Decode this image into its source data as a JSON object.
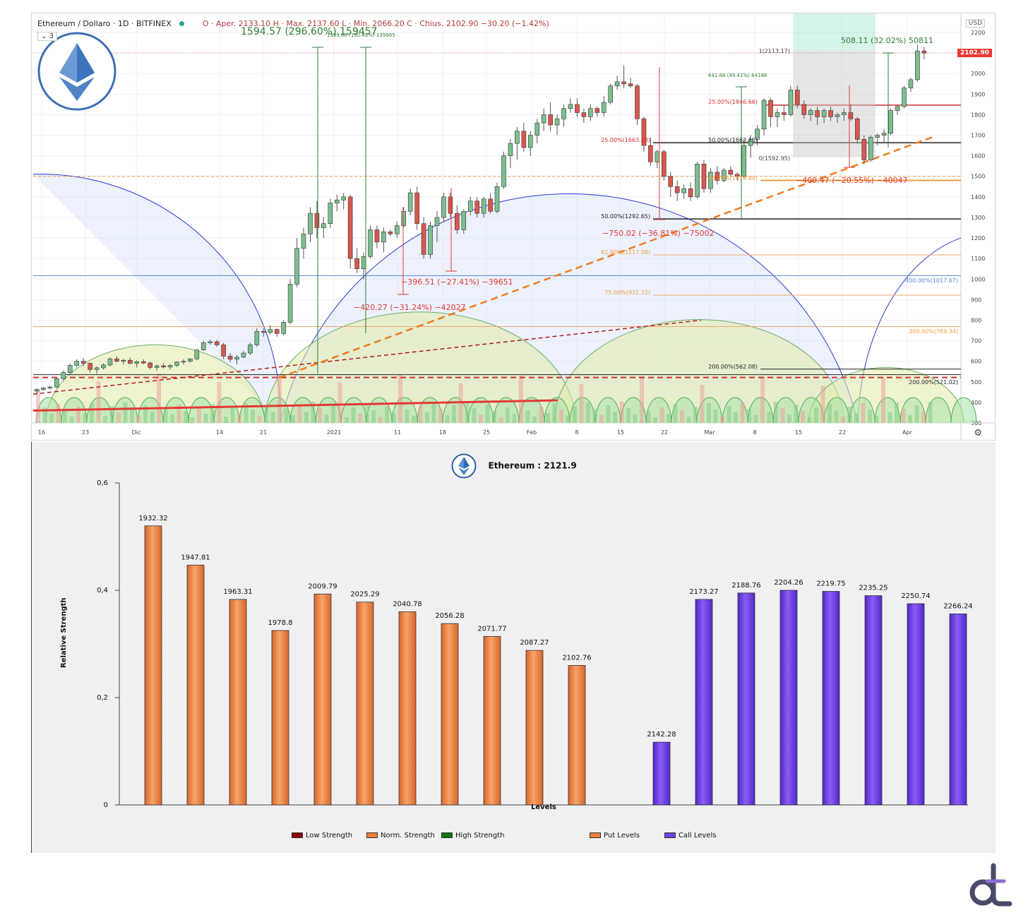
{
  "top_chart": {
    "symbol": "Ethereum / Dollaro · 1D · BITFINEX",
    "ohlc": "O · Aper. 2133.10  H · Max. 2137.60  L · Min. 2066.20  C · Chius. 2102.90  −30.20 (−1.42%)",
    "layer_count": "3",
    "currency": "USD",
    "last_price": "2102.90",
    "settings_icon": "gear-icon",
    "y_ticks": [
      "2200",
      "2100",
      "2000",
      "1900",
      "1800",
      "1700",
      "1600",
      "1500",
      "1400",
      "1300",
      "1200",
      "1100",
      "1000",
      "900",
      "800",
      "700",
      "600",
      "500",
      "400",
      "300"
    ],
    "x_ticks": [
      "16",
      "23",
      "Dic",
      "14",
      "21",
      "2021",
      "11",
      "18",
      "25",
      "Feb",
      "8",
      "15",
      "22",
      "Mar",
      "8",
      "15",
      "22",
      "Apr"
    ],
    "annotations": {
      "big_gain": "1594.57 (296.60%) 159457",
      "small_gain": "1399.66 (190.42%) 139965",
      "gain_apr": "508.11 (32.02%) 50811",
      "gain_mar": "641.88 (49.41%) 64188",
      "drop_jan1": "−420.27 (−31.24%) −42027",
      "drop_jan2": "−396.51 (−27.41%) −39651",
      "drop_feb": "−750.02 (−36.81%) −75002",
      "drop_mar": "−400.47 (−20.55%) −40047",
      "fib_top": "1(2113.17)",
      "fib_50": "50.00%(1663.15)",
      "fib_0": "0(1592.95)",
      "fib_25a": "25.00%(1846.66)",
      "fib_25b": "25.00%(1663.58)",
      "fib_50b": "50.00%(1292.65)",
      "fib_618": "61.80%(1117.58)",
      "fib_75": "75.00%(921.72)",
      "fib_400": "400.00%(1017.67)",
      "fib_300": "300.00%(769.34)",
      "fib_200a": "200.00%(562.08)",
      "fib_200b": "200.00%(521.02)",
      "fib_mid": "38.20%(1479.64)"
    },
    "candles": [
      [
        0,
        455,
        470,
        445,
        462
      ],
      [
        1,
        462,
        475,
        458,
        470
      ],
      [
        2,
        470,
        480,
        462,
        475
      ],
      [
        3,
        475,
        520,
        470,
        515
      ],
      [
        4,
        515,
        555,
        505,
        545
      ],
      [
        5,
        545,
        590,
        540,
        580
      ],
      [
        6,
        580,
        610,
        570,
        600
      ],
      [
        7,
        600,
        615,
        575,
        590
      ],
      [
        8,
        590,
        595,
        545,
        560
      ],
      [
        9,
        560,
        575,
        540,
        568
      ],
      [
        10,
        568,
        590,
        560,
        582
      ],
      [
        11,
        582,
        620,
        575,
        612
      ],
      [
        12,
        612,
        625,
        595,
        600
      ],
      [
        13,
        600,
        612,
        585,
        605
      ],
      [
        14,
        605,
        618,
        585,
        590
      ],
      [
        15,
        590,
        605,
        570,
        598
      ],
      [
        16,
        598,
        610,
        585,
        592
      ],
      [
        17,
        592,
        598,
        560,
        570
      ],
      [
        18,
        570,
        585,
        555,
        578
      ],
      [
        19,
        578,
        590,
        565,
        572
      ],
      [
        20,
        572,
        585,
        560,
        580
      ],
      [
        21,
        580,
        600,
        572,
        596
      ],
      [
        22,
        596,
        610,
        585,
        600
      ],
      [
        23,
        600,
        615,
        595,
        612
      ],
      [
        24,
        612,
        660,
        605,
        655
      ],
      [
        25,
        655,
        700,
        650,
        690
      ],
      [
        26,
        690,
        705,
        680,
        695
      ],
      [
        27,
        695,
        705,
        670,
        680
      ],
      [
        28,
        680,
        690,
        610,
        625
      ],
      [
        29,
        625,
        640,
        595,
        610
      ],
      [
        30,
        610,
        630,
        585,
        620
      ],
      [
        31,
        620,
        650,
        615,
        640
      ],
      [
        32,
        640,
        690,
        630,
        680
      ],
      [
        33,
        680,
        760,
        670,
        745
      ],
      [
        34,
        745,
        760,
        720,
        740
      ],
      [
        35,
        740,
        775,
        730,
        755
      ],
      [
        36,
        755,
        760,
        720,
        735
      ],
      [
        37,
        735,
        800,
        725,
        790
      ],
      [
        38,
        790,
        1000,
        780,
        975
      ],
      [
        39,
        975,
        1200,
        960,
        1150
      ],
      [
        40,
        1150,
        1250,
        1100,
        1220
      ],
      [
        41,
        1220,
        1350,
        1180,
        1320
      ],
      [
        42,
        1320,
        1380,
        1200,
        1250
      ],
      [
        43,
        1250,
        1300,
        1200,
        1270
      ],
      [
        44,
        1270,
        1390,
        1250,
        1370
      ],
      [
        45,
        1370,
        1410,
        1330,
        1385
      ],
      [
        46,
        1385,
        1420,
        1340,
        1400
      ],
      [
        47,
        1400,
        1410,
        1050,
        1100
      ],
      [
        48,
        1100,
        1150,
        1030,
        1050
      ],
      [
        49,
        1050,
        1130,
        1000,
        1110
      ],
      [
        50,
        1110,
        1260,
        1100,
        1240
      ],
      [
        51,
        1240,
        1260,
        1150,
        1180
      ],
      [
        52,
        1180,
        1250,
        1130,
        1230
      ],
      [
        53,
        1230,
        1240,
        1210,
        1220
      ],
      [
        54,
        1220,
        1280,
        1200,
        1260
      ],
      [
        55,
        1260,
        1350,
        1250,
        1330
      ],
      [
        56,
        1330,
        1440,
        1310,
        1420
      ],
      [
        57,
        1420,
        1450,
        1240,
        1270
      ],
      [
        58,
        1270,
        1300,
        1100,
        1120
      ],
      [
        59,
        1120,
        1280,
        1100,
        1260
      ],
      [
        60,
        1260,
        1330,
        1180,
        1300
      ],
      [
        61,
        1300,
        1420,
        1280,
        1400
      ],
      [
        62,
        1400,
        1420,
        1300,
        1320
      ],
      [
        63,
        1320,
        1360,
        1220,
        1240
      ],
      [
        64,
        1240,
        1340,
        1220,
        1330
      ],
      [
        65,
        1330,
        1400,
        1310,
        1380
      ],
      [
        66,
        1380,
        1400,
        1300,
        1320
      ],
      [
        67,
        1320,
        1400,
        1300,
        1390
      ],
      [
        68,
        1390,
        1420,
        1320,
        1330
      ],
      [
        69,
        1330,
        1470,
        1320,
        1450
      ],
      [
        70,
        1450,
        1620,
        1440,
        1600
      ],
      [
        71,
        1600,
        1680,
        1540,
        1660
      ],
      [
        72,
        1660,
        1740,
        1580,
        1720
      ],
      [
        73,
        1720,
        1760,
        1620,
        1640
      ],
      [
        74,
        1640,
        1720,
        1600,
        1700
      ],
      [
        75,
        1700,
        1780,
        1660,
        1760
      ],
      [
        76,
        1760,
        1830,
        1720,
        1800
      ],
      [
        77,
        1800,
        1860,
        1720,
        1750
      ],
      [
        78,
        1750,
        1800,
        1700,
        1780
      ],
      [
        79,
        1780,
        1850,
        1740,
        1830
      ],
      [
        80,
        1830,
        1880,
        1810,
        1850
      ],
      [
        81,
        1850,
        1880,
        1790,
        1810
      ],
      [
        82,
        1810,
        1830,
        1760,
        1790
      ],
      [
        83,
        1790,
        1850,
        1770,
        1830
      ],
      [
        84,
        1830,
        1840,
        1790,
        1810
      ],
      [
        85,
        1810,
        1890,
        1790,
        1860
      ],
      [
        86,
        1860,
        1950,
        1850,
        1940
      ],
      [
        87,
        1940,
        1990,
        1920,
        1960
      ],
      [
        88,
        1960,
        2040,
        1930,
        1950
      ],
      [
        89,
        1950,
        1980,
        1930,
        1940
      ],
      [
        90,
        1940,
        1950,
        1750,
        1780
      ],
      [
        91,
        1780,
        1790,
        1620,
        1650
      ],
      [
        92,
        1650,
        1690,
        1550,
        1570
      ],
      [
        93,
        1570,
        1630,
        1540,
        1620
      ],
      [
        94,
        1620,
        1630,
        1480,
        1500
      ],
      [
        95,
        1500,
        1520,
        1400,
        1450
      ],
      [
        96,
        1450,
        1480,
        1380,
        1420
      ],
      [
        97,
        1420,
        1460,
        1390,
        1440
      ],
      [
        98,
        1440,
        1470,
        1380,
        1400
      ],
      [
        99,
        1400,
        1570,
        1390,
        1560
      ],
      [
        100,
        1560,
        1580,
        1420,
        1440
      ],
      [
        101,
        1440,
        1540,
        1420,
        1520
      ],
      [
        102,
        1520,
        1550,
        1460,
        1480
      ],
      [
        103,
        1480,
        1540,
        1470,
        1530
      ],
      [
        104,
        1530,
        1550,
        1500,
        1510
      ],
      [
        105,
        1510,
        1520,
        1480,
        1500
      ],
      [
        106,
        1500,
        1680,
        1490,
        1650
      ],
      [
        107,
        1650,
        1700,
        1590,
        1680
      ],
      [
        108,
        1680,
        1750,
        1650,
        1730
      ],
      [
        109,
        1730,
        1880,
        1700,
        1870
      ],
      [
        110,
        1870,
        1880,
        1740,
        1790
      ],
      [
        111,
        1790,
        1830,
        1740,
        1810
      ],
      [
        112,
        1810,
        1850,
        1770,
        1800
      ],
      [
        113,
        1800,
        1940,
        1790,
        1920
      ],
      [
        114,
        1920,
        1940,
        1830,
        1850
      ],
      [
        115,
        1850,
        1870,
        1780,
        1800
      ],
      [
        116,
        1800,
        1830,
        1770,
        1820
      ],
      [
        117,
        1820,
        1840,
        1750,
        1790
      ],
      [
        118,
        1790,
        1830,
        1760,
        1820
      ],
      [
        119,
        1820,
        1840,
        1770,
        1790
      ],
      [
        120,
        1790,
        1810,
        1760,
        1800
      ],
      [
        121,
        1800,
        1830,
        1770,
        1810
      ],
      [
        122,
        1810,
        1850,
        1770,
        1780
      ],
      [
        123,
        1780,
        1790,
        1660,
        1680
      ],
      [
        124,
        1680,
        1700,
        1560,
        1580
      ],
      [
        125,
        1580,
        1700,
        1570,
        1690
      ],
      [
        126,
        1690,
        1710,
        1650,
        1700
      ],
      [
        127,
        1700,
        1730,
        1660,
        1710
      ],
      [
        128,
        1710,
        1830,
        1700,
        1820
      ],
      [
        129,
        1820,
        1850,
        1800,
        1840
      ],
      [
        130,
        1840,
        1940,
        1830,
        1930
      ],
      [
        131,
        1930,
        1980,
        1910,
        1970
      ],
      [
        132,
        1970,
        2140,
        1960,
        2110
      ],
      [
        133,
        2110,
        2130,
        2070,
        2100
      ]
    ]
  },
  "chart_data": {
    "type": "bar",
    "title": "Ethereum : 2121.9",
    "xlabel": "Levels",
    "ylabel": "Relative Strength",
    "ylim": [
      0,
      0.6
    ],
    "y_tick_labels": [
      "0",
      "0,2",
      "0,4",
      "0,6"
    ],
    "y_tick_values": [
      0,
      0.2,
      0.4,
      0.6
    ],
    "series": [
      {
        "name": "Put Levels",
        "color": "#f07f3c",
        "categories": [
          "1932.32",
          "1947.81",
          "1963.31",
          "1978.8",
          "2009.79",
          "2025.29",
          "2040.78",
          "2056.28",
          "2071.77",
          "2087.27",
          "2102.76"
        ],
        "values": [
          0.52,
          0.447,
          0.383,
          0.325,
          0.393,
          0.378,
          0.36,
          0.338,
          0.314,
          0.288,
          0.26
        ]
      },
      {
        "name": "Call Levels",
        "color": "#7142e8",
        "categories": [
          "2142.28",
          "2173.27",
          "2188.76",
          "2204.26",
          "2219.75",
          "2235.25",
          "2250.74",
          "2266.24"
        ],
        "values": [
          0.117,
          0.383,
          0.395,
          0.4,
          0.398,
          0.39,
          0.375,
          0.356
        ]
      }
    ],
    "legend": [
      {
        "label": "Low Strength",
        "color": "#8b0000"
      },
      {
        "label": "Norm. Strength",
        "color": "#f07f3c"
      },
      {
        "label": "High Strength",
        "color": "#0a7a0a"
      },
      {
        "label": "Put Levels",
        "color": "#f07f3c"
      },
      {
        "label": "Call Levels",
        "color": "#7142e8"
      }
    ]
  },
  "brand": {
    "eth_logo_icon": "ethereum-logo-icon",
    "corner_logo_icon": "dl-monogram-icon"
  }
}
